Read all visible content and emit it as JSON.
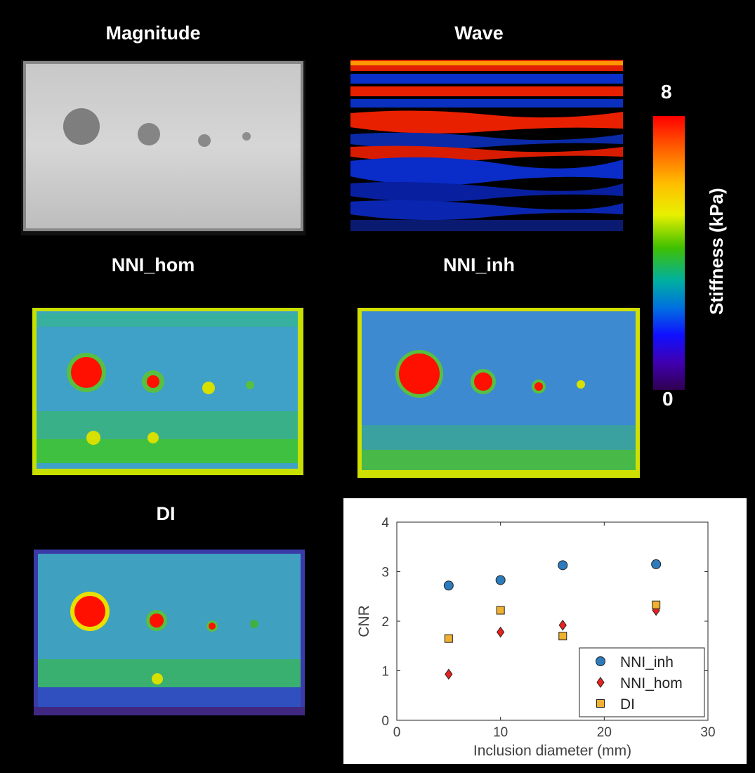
{
  "panels": {
    "magnitude": "Magnitude",
    "wave": "Wave",
    "nni_hom": "NNI_hom",
    "nni_inh": "NNI_inh",
    "di": "DI"
  },
  "colorbar": {
    "title": "Stiffness (kPa)",
    "max_label": "8",
    "min_label": "0"
  },
  "chart_data": {
    "type": "scatter",
    "xlabel": "Inclusion diameter (mm)",
    "ylabel": "CNR",
    "xlim": [
      0,
      30
    ],
    "ylim": [
      0,
      4
    ],
    "xticks": [
      "0",
      "10",
      "20",
      "30"
    ],
    "yticks": [
      "0",
      "1",
      "2",
      "3",
      "4"
    ],
    "legend_position": "bottom-right",
    "series": [
      {
        "name": "NNI_inh",
        "marker": "circle",
        "color": "#2b7bbd",
        "points": [
          [
            5,
            2.72
          ],
          [
            10,
            2.83
          ],
          [
            16,
            3.13
          ],
          [
            25,
            3.15
          ]
        ]
      },
      {
        "name": "NNI_hom",
        "marker": "diamond",
        "color": "#e8211f",
        "points": [
          [
            5,
            0.93
          ],
          [
            10,
            1.78
          ],
          [
            16,
            1.92
          ],
          [
            25,
            2.22
          ]
        ]
      },
      {
        "name": "DI",
        "marker": "square",
        "color": "#f0b030",
        "points": [
          [
            5,
            1.65
          ],
          [
            10,
            2.22
          ],
          [
            16,
            1.7
          ],
          [
            25,
            2.33
          ]
        ]
      }
    ]
  }
}
